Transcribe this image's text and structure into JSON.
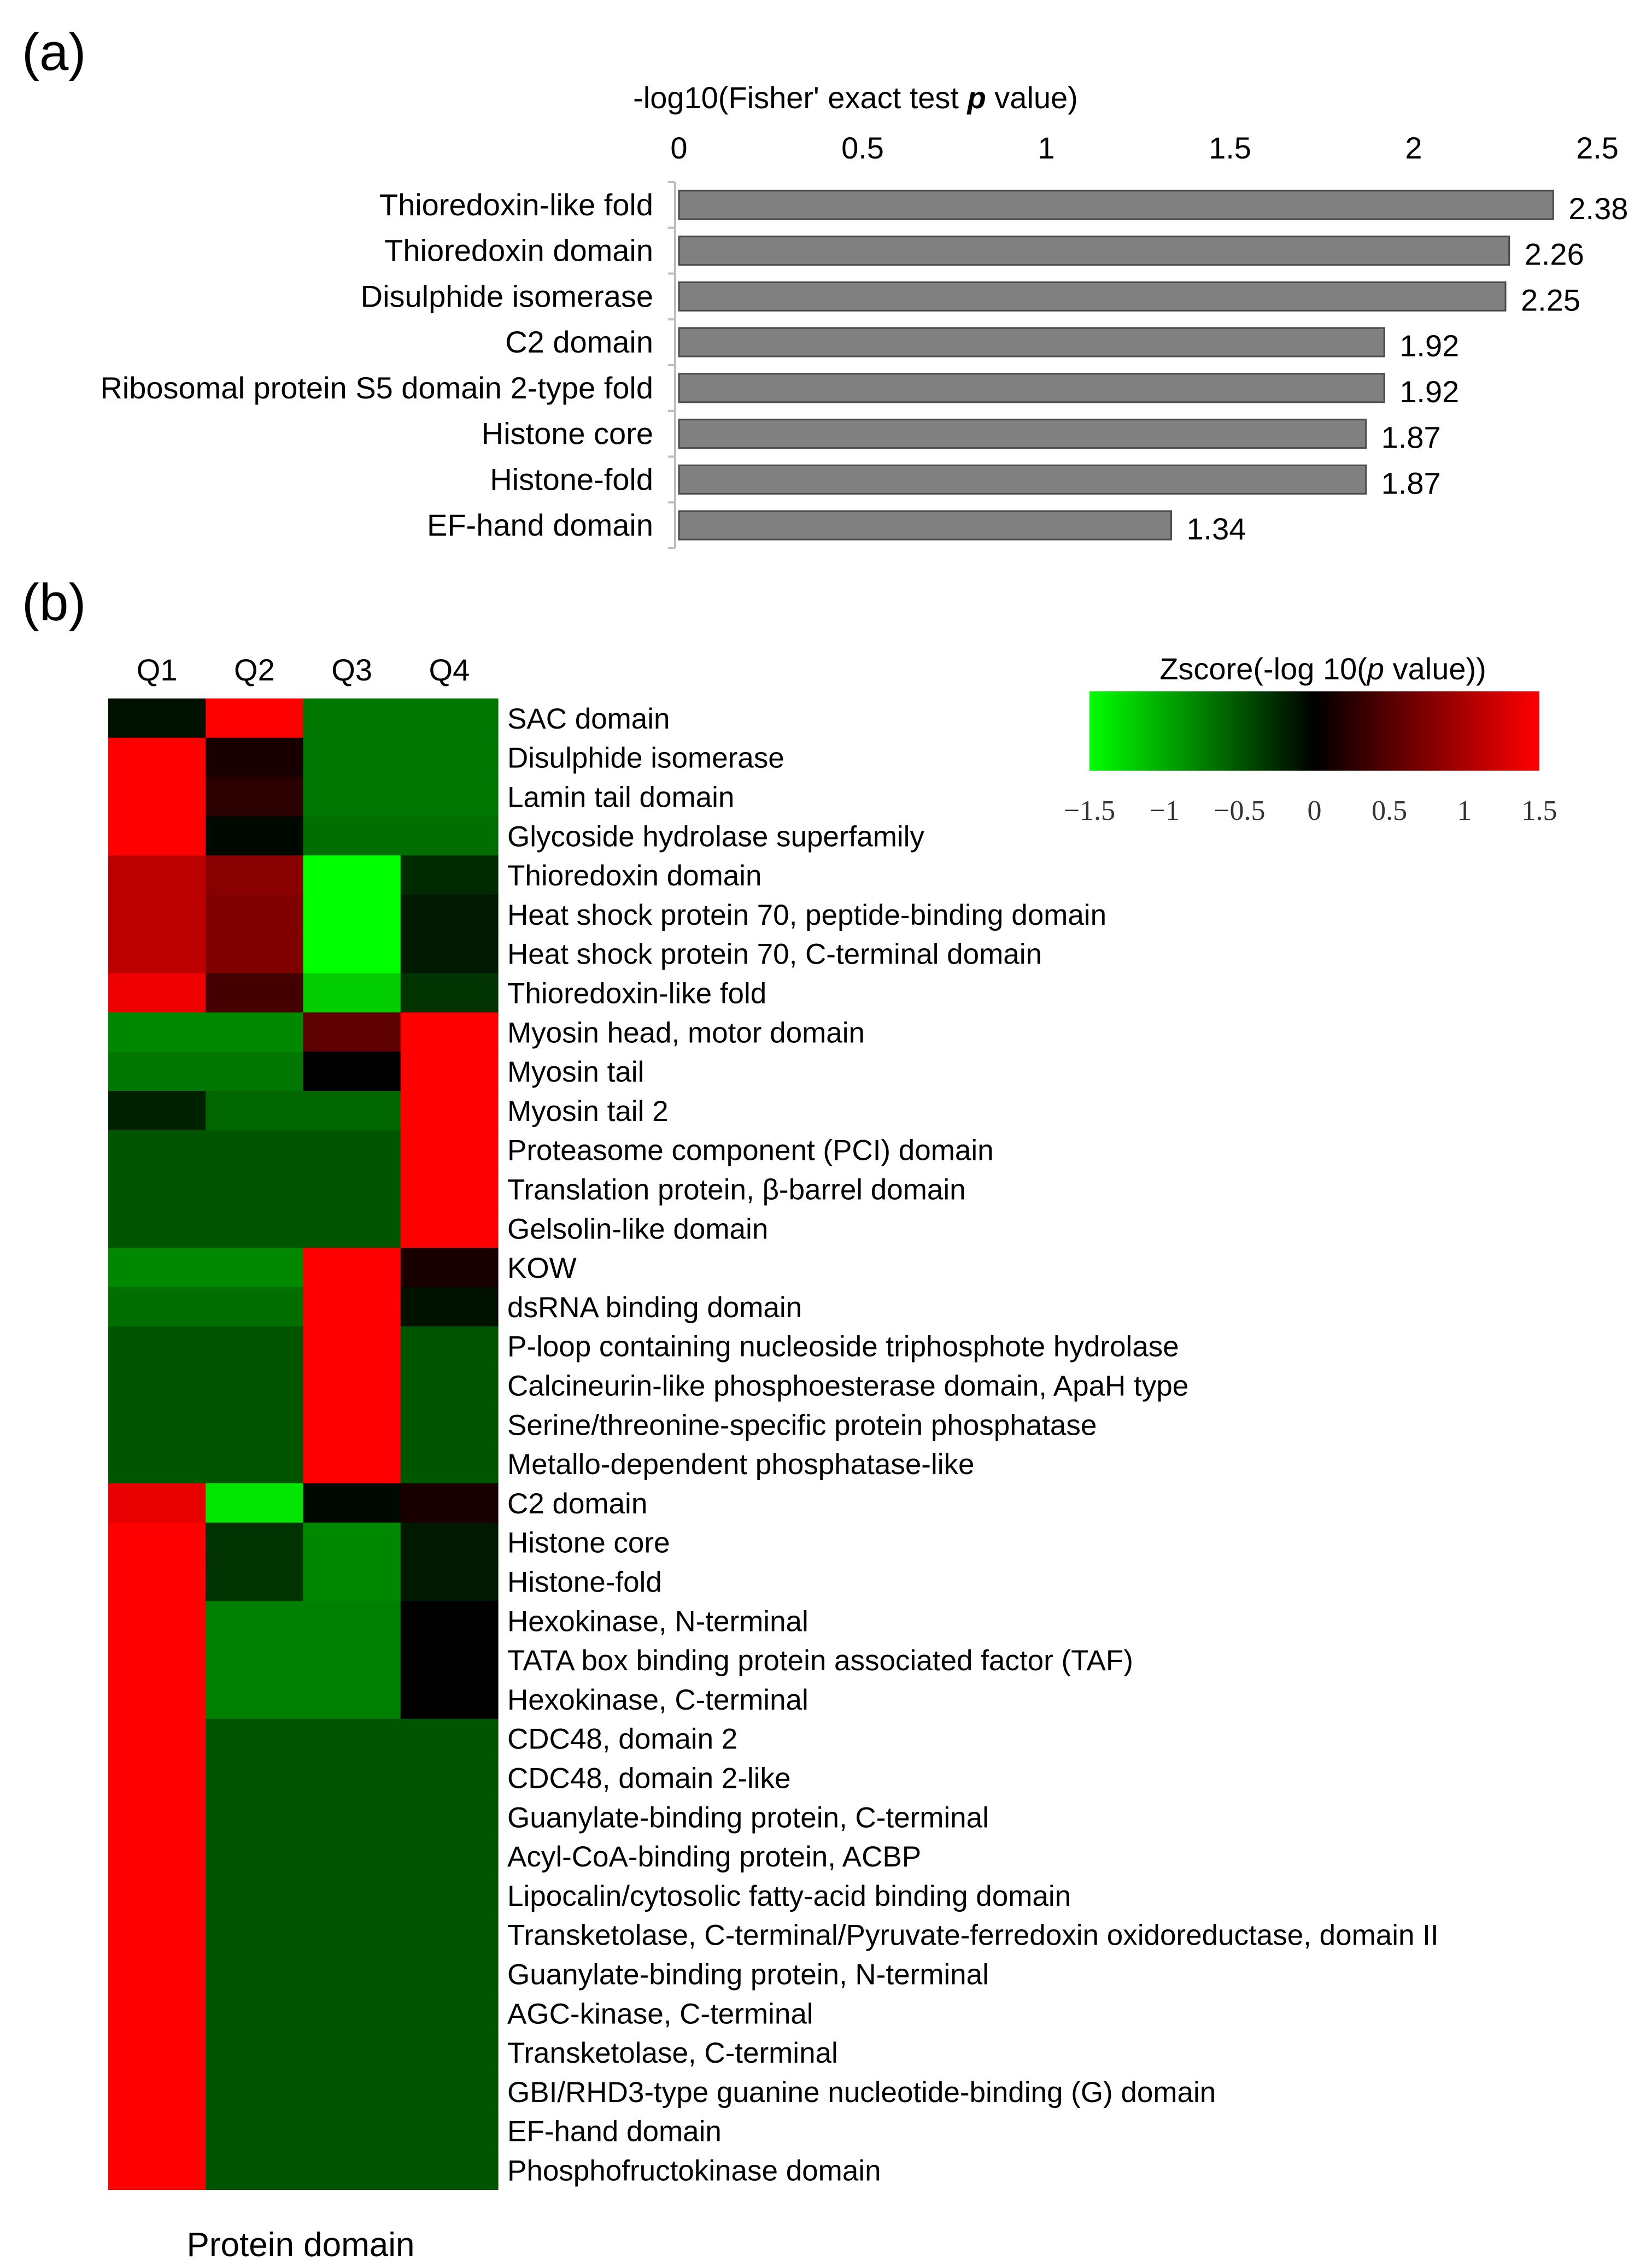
{
  "panel_labels": {
    "a": "(a)",
    "b": "(b)"
  },
  "chart_data": [
    {
      "type": "bar",
      "orientation": "horizontal",
      "title_prefix": "-log10(Fisher' exact test ",
      "title_italic": "p",
      "title_suffix": " value)",
      "xlim": [
        0,
        2.5
      ],
      "ticks": [
        0,
        0.5,
        1,
        1.5,
        2,
        2.5
      ],
      "tick_labels": [
        "0",
        "0.5",
        "1",
        "1.5",
        "2",
        "2.5"
      ],
      "axis_position": "top",
      "categories": [
        "Thioredoxin-like fold",
        "Thioredoxin domain",
        "Disulphide isomerase",
        "C2 domain",
        "Ribosomal protein S5 domain 2-type fold",
        "Histone core",
        "Histone-fold",
        "EF-hand domain"
      ],
      "values": [
        2.38,
        2.26,
        2.25,
        1.92,
        1.92,
        1.87,
        1.87,
        1.34
      ],
      "value_labels": [
        "2.38",
        "2.26",
        "2.25",
        "1.92",
        "1.92",
        "1.87",
        "1.87",
        "1.34"
      ],
      "bar_color": "#808080",
      "bar_edge_color": "#4a4a4a"
    },
    {
      "type": "heatmap",
      "columns": [
        "Q1",
        "Q2",
        "Q3",
        "Q4"
      ],
      "rows": [
        "SAC domain",
        "Disulphide isomerase",
        "Lamin tail domain",
        "Glycoside hydrolase superfamily",
        "Thioredoxin domain",
        "Heat shock protein 70, peptide-binding domain",
        "Heat shock protein 70, C-terminal domain",
        "Thioredoxin-like fold",
        "Myosin head, motor domain",
        "Myosin tail",
        "Myosin tail 2",
        "Proteasome component (PCI) domain",
        "Translation protein, β-barrel domain",
        "Gelsolin-like domain",
        "KOW",
        "dsRNA binding domain",
        "P-loop containing nucleoside triphosphote hydrolase",
        "Calcineurin-like phosphoesterase domain, ApaH type",
        "Serine/threonine-specific protein phosphatase",
        "Metallo-dependent phosphatase-like",
        "C2 domain",
        "Histone core",
        "Histone-fold",
        "Hexokinase, N-terminal",
        "TATA box binding protein associated factor (TAF)",
        "Hexokinase, C-terminal",
        "CDC48, domain 2",
        "CDC48, domain 2-like",
        "Guanylate-binding protein, C-terminal",
        "Acyl-CoA-binding protein, ACBP",
        "Lipocalin/cytosolic fatty-acid binding domain",
        "Transketolase, C-terminal/Pyruvate-ferredoxin oxidoreductase, domain II",
        "Guanylate-binding protein, N-terminal",
        "AGC-kinase, C-terminal",
        "Transketolase, C-terminal",
        "GBI/RHD3-type guanine nucleotide-binding (G) domain",
        "EF-hand domain",
        "Phosphofructokinase domain"
      ],
      "values": [
        [
          -0.1,
          1.5,
          -0.7,
          -0.7
        ],
        [
          1.5,
          0.15,
          -0.7,
          -0.7
        ],
        [
          1.5,
          0.25,
          -0.7,
          -0.7
        ],
        [
          1.5,
          -0.05,
          -0.65,
          -0.65
        ],
        [
          1.1,
          0.8,
          -1.5,
          -0.25
        ],
        [
          1.1,
          0.75,
          -1.5,
          -0.15
        ],
        [
          1.1,
          0.75,
          -1.5,
          -0.15
        ],
        [
          1.4,
          0.4,
          -1.2,
          -0.3
        ],
        [
          -0.8,
          -0.8,
          0.55,
          1.5
        ],
        [
          -0.7,
          -0.7,
          0.0,
          1.5
        ],
        [
          -0.2,
          -0.6,
          -0.6,
          1.5
        ],
        [
          -0.5,
          -0.5,
          -0.5,
          1.5
        ],
        [
          -0.5,
          -0.5,
          -0.5,
          1.5
        ],
        [
          -0.5,
          -0.5,
          -0.5,
          1.5
        ],
        [
          -0.8,
          -0.8,
          1.5,
          0.15
        ],
        [
          -0.65,
          -0.65,
          1.5,
          -0.1
        ],
        [
          -0.5,
          -0.5,
          1.5,
          -0.5
        ],
        [
          -0.5,
          -0.5,
          1.5,
          -0.5
        ],
        [
          -0.5,
          -0.5,
          1.5,
          -0.5
        ],
        [
          -0.5,
          -0.5,
          1.5,
          -0.5
        ],
        [
          1.35,
          -1.35,
          -0.05,
          0.15
        ],
        [
          1.5,
          -0.3,
          -0.8,
          -0.15
        ],
        [
          1.5,
          -0.3,
          -0.8,
          -0.15
        ],
        [
          1.5,
          -0.75,
          -0.75,
          0.0
        ],
        [
          1.5,
          -0.75,
          -0.75,
          0.0
        ],
        [
          1.5,
          -0.75,
          -0.75,
          0.0
        ],
        [
          1.5,
          -0.5,
          -0.5,
          -0.5
        ],
        [
          1.5,
          -0.5,
          -0.5,
          -0.5
        ],
        [
          1.5,
          -0.5,
          -0.5,
          -0.5
        ],
        [
          1.5,
          -0.5,
          -0.5,
          -0.5
        ],
        [
          1.5,
          -0.5,
          -0.5,
          -0.5
        ],
        [
          1.5,
          -0.5,
          -0.5,
          -0.5
        ],
        [
          1.5,
          -0.5,
          -0.5,
          -0.5
        ],
        [
          1.5,
          -0.5,
          -0.5,
          -0.5
        ],
        [
          1.5,
          -0.5,
          -0.5,
          -0.5
        ],
        [
          1.5,
          -0.5,
          -0.5,
          -0.5
        ],
        [
          1.5,
          -0.5,
          -0.5,
          -0.5
        ],
        [
          1.5,
          -0.5,
          -0.5,
          -0.5
        ]
      ],
      "colorbar": {
        "title_prefix": "Zscore(-log 10(",
        "title_italic": "p",
        "title_suffix": " value))",
        "range": [
          -1.5,
          1.5
        ],
        "ticks": [
          -1.5,
          -1,
          -0.5,
          0,
          0.5,
          1,
          1.5
        ],
        "tick_labels": [
          "−1.5",
          "−1",
          "−0.5",
          "0",
          "0.5",
          "1",
          "1.5"
        ],
        "low_color": "#00ff00",
        "mid_color": "#000000",
        "high_color": "#ff0000"
      },
      "xlabel": "Protein domain"
    }
  ]
}
